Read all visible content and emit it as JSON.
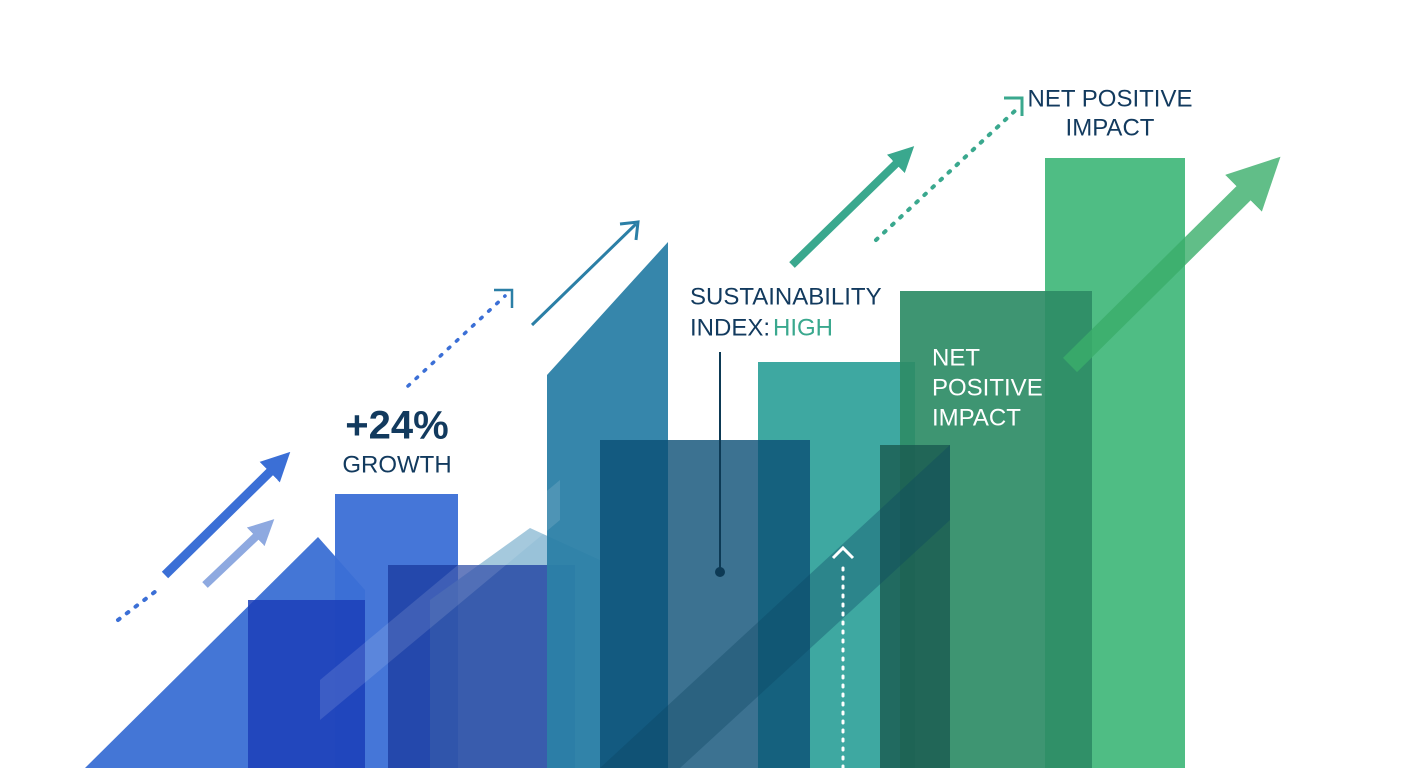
{
  "growth": {
    "figure": "+24%",
    "caption": "GROWTH"
  },
  "sustainability": {
    "title": "SUSTAINABILITY",
    "prefix": "INDEX:",
    "level": "HIGH"
  },
  "impact_middle": [
    "NET",
    "POSITIVE",
    "IMPACT"
  ],
  "impact_top": [
    "NET POSITIVE",
    "IMPACT"
  ]
}
